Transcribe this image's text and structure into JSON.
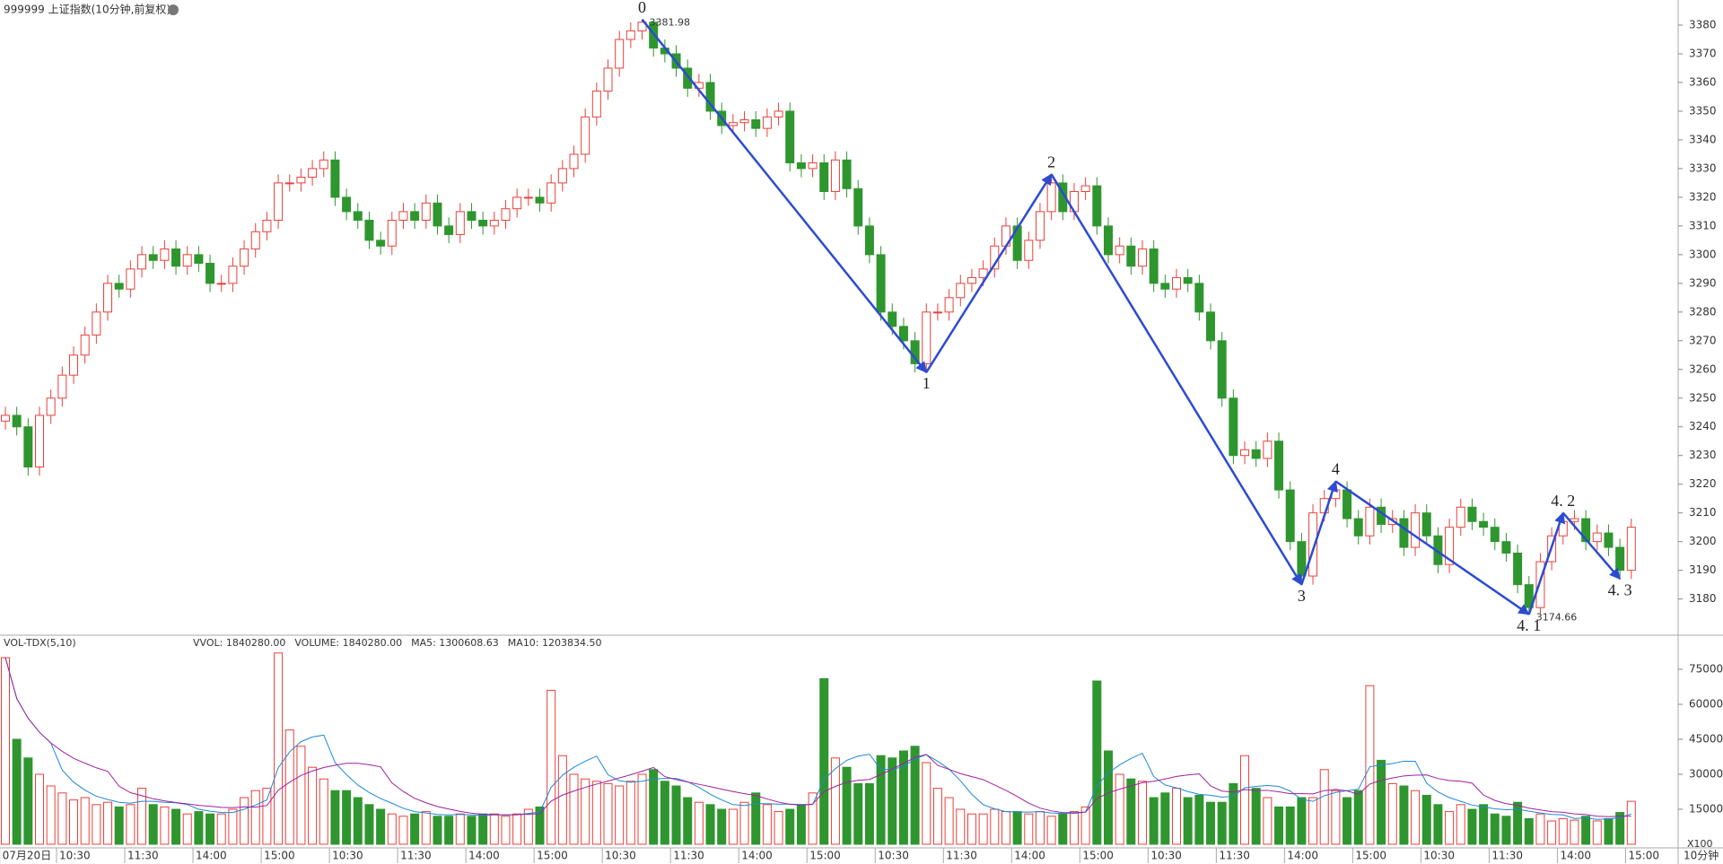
{
  "header": {
    "title": "999999 上证指数(10分钟,前复权)"
  },
  "chart_data": [
    {
      "type": "candlestick",
      "up_color": "#e8413c",
      "down_color": "#2f962f",
      "ylim": [
        3168,
        3385
      ],
      "yticks": [
        3180,
        3190,
        3200,
        3210,
        3220,
        3230,
        3240,
        3250,
        3260,
        3270,
        3280,
        3290,
        3300,
        3310,
        3320,
        3330,
        3340,
        3350,
        3360,
        3370,
        3380
      ],
      "xticks": [
        {
          "value": 0,
          "label": "07月20日"
        },
        {
          "value": 5,
          "label": "10:30"
        },
        {
          "value": 11,
          "label": "11:30"
        },
        {
          "value": 17,
          "label": "14:00"
        },
        {
          "value": 23,
          "label": "15:00"
        },
        {
          "value": 29,
          "label": "10:30"
        },
        {
          "value": 35,
          "label": "11:30"
        },
        {
          "value": 41,
          "label": "14:00"
        },
        {
          "value": 47,
          "label": "15:00"
        },
        {
          "value": 53,
          "label": "10:30"
        },
        {
          "value": 59,
          "label": "11:30"
        },
        {
          "value": 65,
          "label": "14:00"
        },
        {
          "value": 71,
          "label": "15:00"
        },
        {
          "value": 77,
          "label": "10:30"
        },
        {
          "value": 83,
          "label": "11:30"
        },
        {
          "value": 89,
          "label": "14:00"
        },
        {
          "value": 95,
          "label": "15:00"
        },
        {
          "value": 101,
          "label": "10:30"
        },
        {
          "value": 107,
          "label": "11:30"
        },
        {
          "value": 113,
          "label": "14:00"
        },
        {
          "value": 119,
          "label": "15:00"
        },
        {
          "value": 125,
          "label": "10:30"
        },
        {
          "value": 131,
          "label": "11:30"
        },
        {
          "value": 137,
          "label": "14:00"
        },
        {
          "value": 143,
          "label": "15:00"
        }
      ],
      "open": [
        3242,
        3244,
        3240,
        3226,
        3244,
        3250,
        3258,
        3265,
        3272,
        3280,
        3290,
        3288,
        3295,
        3300,
        3298,
        3302,
        3296,
        3300,
        3297,
        3290,
        3290,
        3296,
        3302,
        3308,
        3312,
        3325,
        3325,
        3327,
        3330,
        3333,
        3320,
        3315,
        3312,
        3305,
        3303,
        3312,
        3315,
        3312,
        3318,
        3310,
        3307,
        3315,
        3312,
        3310,
        3312,
        3316,
        3320,
        3320,
        3318,
        3325,
        3330,
        3335,
        3348,
        3357,
        3365,
        3375,
        3378,
        3381,
        3372,
        3370,
        3365,
        3358,
        3360,
        3350,
        3345,
        3346,
        3347,
        3344,
        3348,
        3350,
        3332,
        3330,
        3332,
        3322,
        3333,
        3323,
        3310,
        3300,
        3280,
        3275,
        3270,
        3262,
        3280,
        3280,
        3285,
        3290,
        3292,
        3295,
        3303,
        3310,
        3298,
        3305,
        3315,
        3325,
        3315,
        3322,
        3324,
        3310,
        3300,
        3303,
        3296,
        3302,
        3290,
        3288,
        3292,
        3290,
        3280,
        3270,
        3250,
        3230,
        3232,
        3229,
        3235,
        3218,
        3200,
        3188,
        3210,
        3215,
        3218,
        3208,
        3202,
        3212,
        3206,
        3208,
        3198,
        3210,
        3202,
        3192,
        3205,
        3212,
        3207,
        3205,
        3200,
        3196,
        3185,
        3177,
        3193,
        3202,
        3207,
        3208,
        3200,
        3203,
        3198,
        3190
      ],
      "high": [
        3247,
        3247,
        3243,
        3247,
        3253,
        3261,
        3268,
        3275,
        3283,
        3293,
        3293,
        3298,
        3303,
        3303,
        3305,
        3305,
        3303,
        3303,
        3300,
        3293,
        3299,
        3305,
        3311,
        3315,
        3328,
        3328,
        3330,
        3333,
        3336,
        3336,
        3323,
        3318,
        3315,
        3308,
        3315,
        3318,
        3318,
        3321,
        3321,
        3313,
        3318,
        3318,
        3315,
        3315,
        3319,
        3323,
        3323,
        3323,
        3328,
        3333,
        3338,
        3351,
        3360,
        3368,
        3378,
        3381,
        3381.98,
        3381,
        3375,
        3373,
        3368,
        3363,
        3363,
        3353,
        3349,
        3350,
        3350,
        3351,
        3353,
        3353,
        3335,
        3335,
        3335,
        3336,
        3336,
        3326,
        3313,
        3303,
        3283,
        3278,
        3273,
        3283,
        3283,
        3288,
        3293,
        3295,
        3298,
        3306,
        3313,
        3313,
        3308,
        3318,
        3328,
        3328,
        3325,
        3327,
        3327,
        3313,
        3306,
        3306,
        3305,
        3305,
        3293,
        3295,
        3295,
        3293,
        3283,
        3273,
        3253,
        3235,
        3235,
        3238,
        3238,
        3221,
        3203,
        3213,
        3218,
        3221,
        3221,
        3211,
        3215,
        3215,
        3211,
        3211,
        3213,
        3213,
        3205,
        3208,
        3215,
        3215,
        3210,
        3208,
        3203,
        3199,
        3188,
        3196,
        3205,
        3210,
        3211,
        3211,
        3206,
        3206,
        3201,
        3208
      ],
      "low": [
        3239,
        3237,
        3223,
        3223,
        3241,
        3247,
        3255,
        3262,
        3269,
        3277,
        3285,
        3285,
        3292,
        3295,
        3295,
        3293,
        3293,
        3294,
        3287,
        3287,
        3287,
        3293,
        3299,
        3305,
        3309,
        3322,
        3322,
        3324,
        3327,
        3317,
        3312,
        3309,
        3302,
        3300,
        3300,
        3309,
        3309,
        3309,
        3307,
        3304,
        3304,
        3309,
        3307,
        3307,
        3309,
        3313,
        3317,
        3315,
        3315,
        3322,
        3327,
        3332,
        3345,
        3354,
        3362,
        3372,
        3375,
        3369,
        3367,
        3362,
        3355,
        3355,
        3347,
        3342,
        3342,
        3343,
        3341,
        3341,
        3345,
        3329,
        3327,
        3327,
        3319,
        3319,
        3320,
        3307,
        3297,
        3277,
        3272,
        3267,
        3259,
        3259,
        3277,
        3277,
        3282,
        3287,
        3289,
        3292,
        3300,
        3295,
        3295,
        3302,
        3312,
        3312,
        3312,
        3319,
        3307,
        3297,
        3297,
        3293,
        3293,
        3287,
        3285,
        3285,
        3287,
        3277,
        3267,
        3247,
        3227,
        3227,
        3226,
        3226,
        3215,
        3197,
        3185,
        3185,
        3207,
        3212,
        3205,
        3199,
        3199,
        3203,
        3203,
        3195,
        3195,
        3199,
        3189,
        3189,
        3202,
        3204,
        3202,
        3197,
        3193,
        3182,
        3174.66,
        3175,
        3190,
        3199,
        3204,
        3197,
        3197,
        3195,
        3187,
        3187
      ],
      "close": [
        3244,
        3240,
        3226,
        3244,
        3250,
        3258,
        3265,
        3272,
        3280,
        3290,
        3288,
        3295,
        3300,
        3298,
        3302,
        3296,
        3300,
        3297,
        3290,
        3290,
        3296,
        3302,
        3308,
        3312,
        3325,
        3325,
        3327,
        3330,
        3333,
        3320,
        3315,
        3312,
        3305,
        3303,
        3312,
        3315,
        3312,
        3318,
        3310,
        3307,
        3315,
        3312,
        3310,
        3312,
        3316,
        3320,
        3320,
        3318,
        3325,
        3330,
        3335,
        3348,
        3357,
        3365,
        3375,
        3378,
        3381,
        3372,
        3370,
        3365,
        3358,
        3360,
        3350,
        3345,
        3346,
        3347,
        3344,
        3348,
        3350,
        3332,
        3330,
        3332,
        3322,
        3333,
        3323,
        3310,
        3300,
        3280,
        3275,
        3270,
        3262,
        3280,
        3280,
        3285,
        3290,
        3292,
        3295,
        3303,
        3310,
        3298,
        3305,
        3315,
        3325,
        3315,
        3322,
        3324,
        3310,
        3300,
        3303,
        3296,
        3302,
        3290,
        3288,
        3292,
        3290,
        3280,
        3270,
        3250,
        3230,
        3232,
        3229,
        3235,
        3218,
        3200,
        3188,
        3210,
        3215,
        3218,
        3208,
        3202,
        3212,
        3206,
        3208,
        3198,
        3210,
        3202,
        3192,
        3205,
        3212,
        3207,
        3205,
        3200,
        3196,
        3185,
        3177,
        3193,
        3202,
        3207,
        3208,
        3200,
        3203,
        3198,
        3190,
        3205
      ],
      "wave_color": "#2c4bd1",
      "pivots": [
        {
          "label": "0",
          "bar": 56,
          "price": 3381.98,
          "side": "top"
        },
        {
          "label": "1",
          "bar": 81,
          "price": 3259,
          "side": "bottom"
        },
        {
          "label": "2",
          "bar": 92,
          "price": 3328,
          "side": "top"
        },
        {
          "label": "3",
          "bar": 114,
          "price": 3185,
          "side": "bottom"
        },
        {
          "label": "4",
          "bar": 117,
          "price": 3221,
          "side": "top"
        },
        {
          "label": "4. 1",
          "bar": 134,
          "price": 3174.66,
          "side": "bottom"
        },
        {
          "label": "4. 2",
          "bar": 137,
          "price": 3210,
          "side": "top"
        },
        {
          "label": "4. 3",
          "bar": 142,
          "price": 3187,
          "side": "bottom"
        }
      ],
      "extremes": [
        {
          "bar": 56,
          "value": 3381.98
        },
        {
          "bar": 134,
          "value": 3174.66
        }
      ]
    },
    {
      "type": "bar",
      "title": "VOL-TDX(5,10)",
      "legend": [
        {
          "text": "VVOL: 1840280.00",
          "color": "#222222"
        },
        {
          "text": "VOLUME: 1840280.00",
          "color": "#1e88d6"
        },
        {
          "text": "MA5: 1300608.63",
          "color": "#1e88d6"
        },
        {
          "text": "MA10: 1203834.50",
          "color": "#a0219e"
        }
      ],
      "ma": [
        {
          "period": 5,
          "color": "#1e88d6"
        },
        {
          "period": 10,
          "color": "#a0219e"
        }
      ],
      "ylim": [
        0,
        84000
      ],
      "yticks": [
        15000,
        30000,
        45000,
        60000,
        75000
      ],
      "unit_label": "X100",
      "period_label": "10分钟",
      "values": [
        80000,
        45000,
        37000,
        30000,
        25000,
        22000,
        19000,
        20000,
        17000,
        18000,
        16000,
        17000,
        24000,
        17000,
        16000,
        15000,
        13000,
        14000,
        13000,
        13000,
        15000,
        20000,
        23000,
        24000,
        82000,
        49000,
        42000,
        33000,
        28000,
        23000,
        23000,
        20000,
        17000,
        15000,
        13000,
        12000,
        13000,
        14000,
        12000,
        12000,
        13000,
        12000,
        13000,
        13000,
        12000,
        13000,
        15000,
        16000,
        66000,
        38000,
        30000,
        28000,
        27000,
        26000,
        25000,
        27000,
        30000,
        32000,
        27000,
        25000,
        20000,
        18000,
        17000,
        15000,
        15000,
        18000,
        22000,
        17000,
        14000,
        15000,
        17000,
        22000,
        71000,
        37000,
        33000,
        26000,
        26000,
        38000,
        37000,
        40000,
        42000,
        35000,
        24000,
        20000,
        15000,
        13000,
        13000,
        15000,
        14000,
        14000,
        13000,
        14000,
        12000,
        13000,
        14000,
        16000,
        70000,
        40000,
        30000,
        28000,
        27000,
        20000,
        22000,
        24000,
        20000,
        21000,
        18000,
        18000,
        26000,
        38000,
        24000,
        20000,
        16000,
        16000,
        20000,
        20000,
        32000,
        23000,
        20000,
        23000,
        68000,
        36000,
        26000,
        25000,
        23000,
        21000,
        17000,
        14000,
        17000,
        15000,
        17000,
        13000,
        12000,
        18000,
        11000,
        13000,
        10000,
        11000,
        10350,
        12000,
        10000,
        11000,
        13627,
        18403
      ]
    }
  ]
}
